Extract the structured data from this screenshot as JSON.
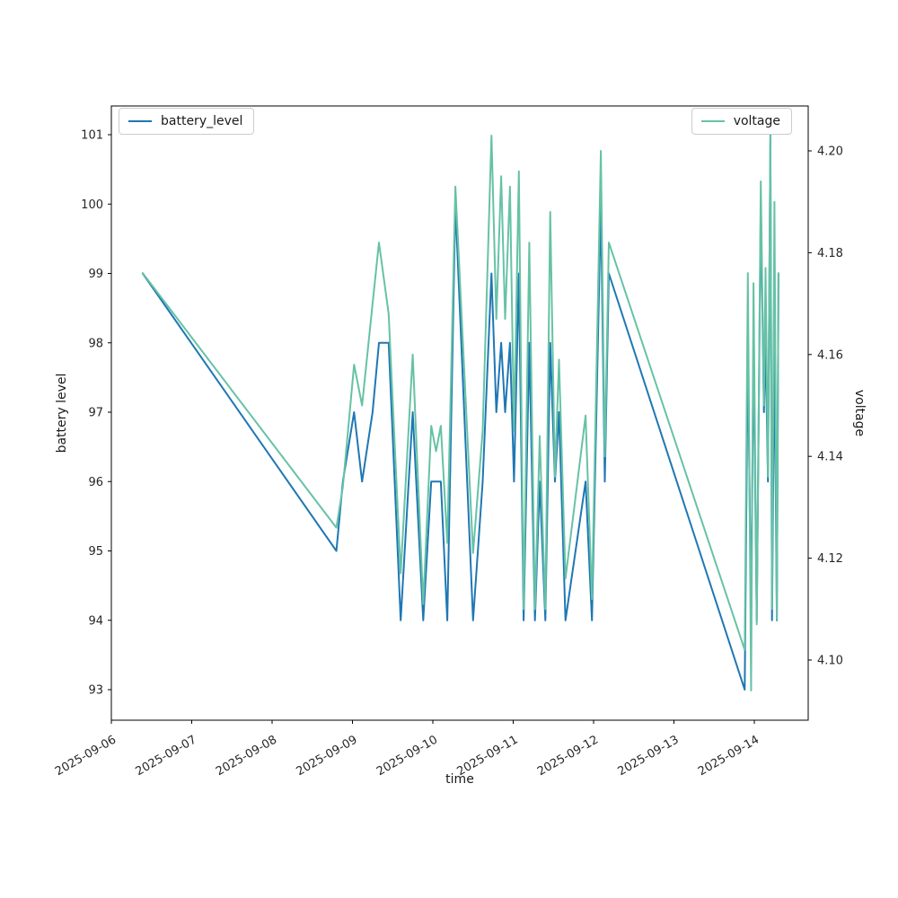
{
  "figure": {
    "background": "#ffffff"
  },
  "legends": {
    "battery": {
      "label": "battery_level",
      "color": "#1f77b4"
    },
    "voltage": {
      "label": "voltage",
      "color": "#66c2a5"
    }
  },
  "axes": {
    "x": {
      "label": "time",
      "tick_labels": [
        "2025-09-06",
        "2025-09-07",
        "2025-09-08",
        "2025-09-09",
        "2025-09-10",
        "2025-09-11",
        "2025-09-12",
        "2025-09-13",
        "2025-09-14"
      ]
    },
    "y_left": {
      "label": "battery level",
      "ticks": [
        93,
        94,
        95,
        96,
        97,
        98,
        99,
        100,
        101
      ]
    },
    "y_right": {
      "label": "voltage",
      "tick_labels": [
        "4.10",
        "4.12",
        "4.14",
        "4.16",
        "4.18",
        "4.20"
      ],
      "ticks": [
        4.1,
        4.12,
        4.14,
        4.16,
        4.18,
        4.2
      ]
    }
  },
  "chart_data": {
    "type": "line",
    "title": "",
    "xlabel": "time",
    "ylabel_left": "battery level",
    "ylabel_right": "voltage",
    "grid": false,
    "legend_positions": [
      "upper left",
      "upper right"
    ],
    "x_unit": "days since 2025-09-06 00:00",
    "x_range_days": [
      0,
      8.67
    ],
    "y_left_range": [
      92.56,
      101.43
    ],
    "y_right_range": [
      4.088,
      4.209
    ],
    "x": [
      0.39,
      2.8,
      2.88,
      3.02,
      3.12,
      3.25,
      3.33,
      3.45,
      3.6,
      3.75,
      3.88,
      3.98,
      4.04,
      4.1,
      4.18,
      4.28,
      4.5,
      4.62,
      4.73,
      4.79,
      4.85,
      4.9,
      4.96,
      5.01,
      5.07,
      5.13,
      5.2,
      5.27,
      5.33,
      5.4,
      5.46,
      5.52,
      5.57,
      5.65,
      5.9,
      5.98,
      6.09,
      6.14,
      6.19,
      7.88,
      7.92,
      7.96,
      7.99,
      8.03,
      8.08,
      8.12,
      8.14,
      8.17,
      8.2,
      8.22,
      8.25,
      8.28,
      8.3
    ],
    "series": [
      {
        "name": "battery_level",
        "axis": "left",
        "color": "#1f77b4",
        "values": [
          99,
          95,
          96,
          97,
          96,
          97,
          98,
          98,
          94,
          97,
          94,
          96,
          96,
          96,
          94,
          100,
          94,
          96,
          99,
          97,
          98,
          97,
          98,
          96,
          99,
          94,
          98,
          94,
          96,
          94,
          98,
          96,
          97,
          94,
          96,
          94,
          100,
          96,
          99,
          93,
          98,
          94,
          98,
          94,
          100,
          97,
          98,
          96,
          101,
          94,
          98,
          94,
          99
        ]
      },
      {
        "name": "voltage",
        "axis": "right",
        "color": "#66c2a5",
        "values": [
          4.176,
          4.126,
          4.134,
          4.158,
          4.15,
          4.17,
          4.182,
          4.168,
          4.117,
          4.16,
          4.111,
          4.146,
          4.141,
          4.146,
          4.123,
          4.193,
          4.121,
          4.145,
          4.203,
          4.167,
          4.195,
          4.167,
          4.193,
          4.145,
          4.196,
          4.11,
          4.182,
          4.11,
          4.144,
          4.11,
          4.188,
          4.136,
          4.159,
          4.116,
          4.148,
          4.112,
          4.2,
          4.14,
          4.182,
          4.102,
          4.176,
          4.094,
          4.174,
          4.107,
          4.194,
          4.15,
          4.177,
          4.136,
          4.203,
          4.11,
          4.19,
          4.108,
          4.176
        ]
      }
    ]
  }
}
